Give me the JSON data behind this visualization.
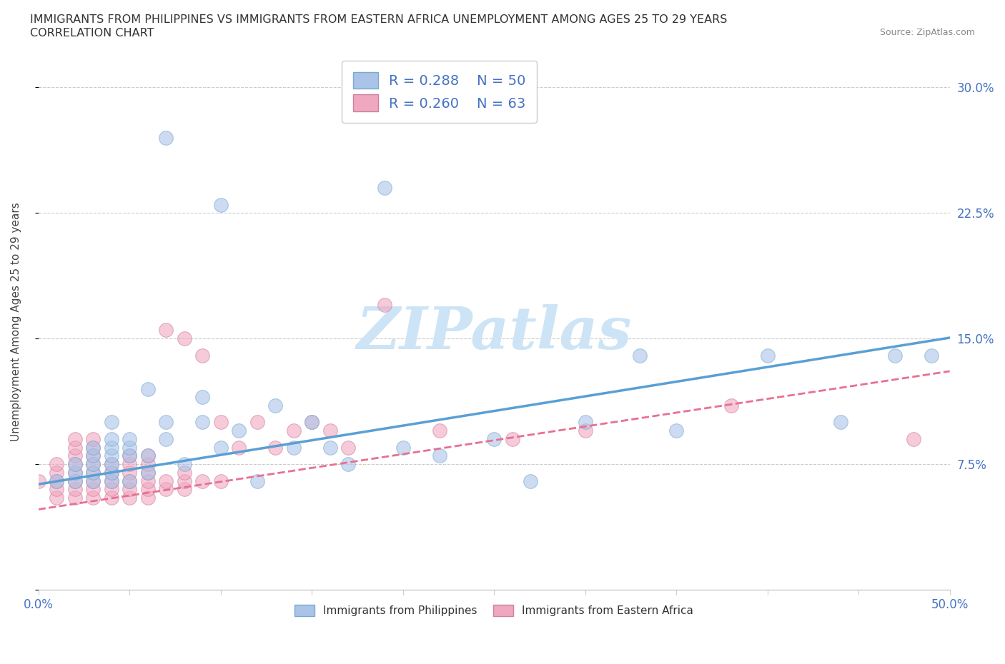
{
  "title_line1": "IMMIGRANTS FROM PHILIPPINES VS IMMIGRANTS FROM EASTERN AFRICA UNEMPLOYMENT AMONG AGES 25 TO 29 YEARS",
  "title_line2": "CORRELATION CHART",
  "source_text": "Source: ZipAtlas.com",
  "ylabel": "Unemployment Among Ages 25 to 29 years",
  "xlim": [
    0.0,
    0.5
  ],
  "ylim": [
    0.0,
    0.32
  ],
  "xticks": [
    0.0,
    0.05,
    0.1,
    0.15,
    0.2,
    0.25,
    0.3,
    0.35,
    0.4,
    0.45,
    0.5
  ],
  "yticks": [
    0.0,
    0.075,
    0.15,
    0.225,
    0.3
  ],
  "ytick_right_labels": [
    "",
    "7.5%",
    "15.0%",
    "22.5%",
    "30.0%"
  ],
  "xtick_labels": [
    "0.0%",
    "",
    "",
    "",
    "",
    "",
    "",
    "",
    "",
    "",
    "50.0%"
  ],
  "R_philippines": 0.288,
  "N_philippines": 50,
  "R_eastern_africa": 0.26,
  "N_eastern_africa": 63,
  "color_philippines": "#aac4e8",
  "color_eastern_africa": "#f0a8c0",
  "regression_color_philippines": "#5a9fd4",
  "regression_color_eastern_africa": "#e87090",
  "watermark_text": "ZIPatlas",
  "watermark_color": "#cce4f5",
  "phil_x": [
    0.01,
    0.02,
    0.02,
    0.02,
    0.03,
    0.03,
    0.03,
    0.03,
    0.03,
    0.04,
    0.04,
    0.04,
    0.04,
    0.04,
    0.04,
    0.04,
    0.05,
    0.05,
    0.05,
    0.05,
    0.06,
    0.06,
    0.06,
    0.07,
    0.07,
    0.07,
    0.08,
    0.09,
    0.09,
    0.1,
    0.1,
    0.11,
    0.12,
    0.13,
    0.14,
    0.15,
    0.16,
    0.17,
    0.19,
    0.2,
    0.22,
    0.25,
    0.27,
    0.3,
    0.33,
    0.35,
    0.4,
    0.44,
    0.47,
    0.49
  ],
  "phil_y": [
    0.065,
    0.065,
    0.07,
    0.075,
    0.065,
    0.07,
    0.075,
    0.08,
    0.085,
    0.065,
    0.07,
    0.075,
    0.08,
    0.085,
    0.09,
    0.1,
    0.065,
    0.08,
    0.085,
    0.09,
    0.07,
    0.08,
    0.12,
    0.09,
    0.1,
    0.27,
    0.075,
    0.1,
    0.115,
    0.085,
    0.23,
    0.095,
    0.065,
    0.11,
    0.085,
    0.1,
    0.085,
    0.075,
    0.24,
    0.085,
    0.08,
    0.09,
    0.065,
    0.1,
    0.14,
    0.095,
    0.14,
    0.1,
    0.14,
    0.14
  ],
  "ea_x": [
    0.0,
    0.01,
    0.01,
    0.01,
    0.01,
    0.01,
    0.02,
    0.02,
    0.02,
    0.02,
    0.02,
    0.02,
    0.02,
    0.02,
    0.03,
    0.03,
    0.03,
    0.03,
    0.03,
    0.03,
    0.03,
    0.03,
    0.04,
    0.04,
    0.04,
    0.04,
    0.04,
    0.05,
    0.05,
    0.05,
    0.05,
    0.05,
    0.05,
    0.06,
    0.06,
    0.06,
    0.06,
    0.06,
    0.06,
    0.07,
    0.07,
    0.07,
    0.08,
    0.08,
    0.08,
    0.08,
    0.09,
    0.09,
    0.1,
    0.1,
    0.11,
    0.12,
    0.13,
    0.14,
    0.15,
    0.16,
    0.17,
    0.19,
    0.22,
    0.26,
    0.3,
    0.38,
    0.48
  ],
  "ea_y": [
    0.065,
    0.055,
    0.06,
    0.065,
    0.07,
    0.075,
    0.055,
    0.06,
    0.065,
    0.07,
    0.075,
    0.08,
    0.085,
    0.09,
    0.055,
    0.06,
    0.065,
    0.07,
    0.075,
    0.08,
    0.085,
    0.09,
    0.055,
    0.06,
    0.065,
    0.07,
    0.075,
    0.055,
    0.06,
    0.065,
    0.07,
    0.075,
    0.08,
    0.055,
    0.06,
    0.065,
    0.07,
    0.075,
    0.08,
    0.06,
    0.065,
    0.155,
    0.06,
    0.065,
    0.07,
    0.15,
    0.065,
    0.14,
    0.065,
    0.1,
    0.085,
    0.1,
    0.085,
    0.095,
    0.1,
    0.095,
    0.085,
    0.17,
    0.095,
    0.09,
    0.095,
    0.11,
    0.09
  ]
}
